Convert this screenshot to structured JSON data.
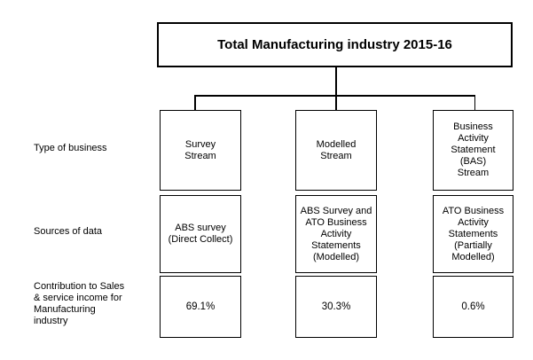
{
  "page": {
    "background_color": "#ffffff",
    "line_color": "#000000"
  },
  "title": {
    "text": "Total Manufacturing industry 2015-16"
  },
  "row_labels": {
    "type_of_business": "Type of business",
    "sources_of_data": "Sources of data",
    "contribution": "Contribution to Sales\n& service income for\nManufacturing\nindustry"
  },
  "columns": [
    {
      "id": "survey-stream",
      "type_of_business": "Survey\nStream",
      "sources_of_data": "ABS survey\n(Direct Collect)",
      "contribution": "69.1%"
    },
    {
      "id": "modelled-stream",
      "type_of_business": "Modelled\nStream",
      "sources_of_data": "ABS Survey and\nATO Business\nActivity\nStatements\n(Modelled)",
      "contribution": "30.3%"
    },
    {
      "id": "bas-stream",
      "type_of_business": "Business\nActivity\nStatement\n(BAS)\nStream",
      "sources_of_data": "ATO Business\nActivity\nStatements\n(Partially\nModelled)",
      "contribution": "0.6%"
    }
  ]
}
